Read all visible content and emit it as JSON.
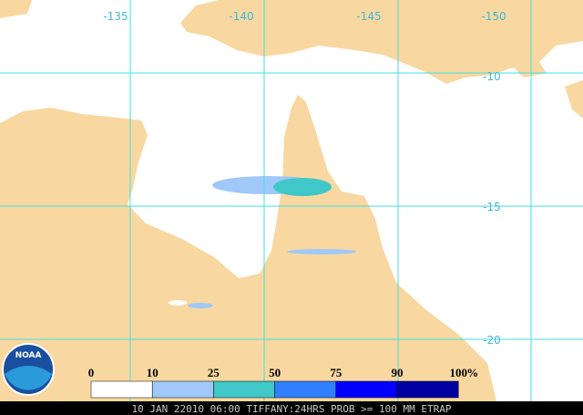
{
  "map": {
    "longitude_labels": [
      "-135",
      "-140",
      "-145",
      "-150"
    ],
    "latitude_labels": [
      "-10",
      "-15",
      "-20"
    ],
    "legend": {
      "labels": [
        0,
        10,
        25,
        50,
        75,
        90,
        100
      ],
      "unit": "%",
      "colors": [
        "#ffffff",
        "#a0c8f8",
        "#40c8c8",
        "#3080ff",
        "#0000ff",
        "#0000a0"
      ]
    },
    "logo": "NOAA",
    "caption": "10 JAN 22010 06:00 TIFFANY:24HRS PROB >= 100 MM ETRAP"
  }
}
